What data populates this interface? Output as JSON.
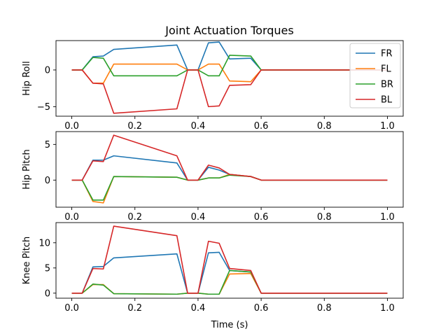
{
  "figure": {
    "title": "Joint Actuation Torques",
    "xlabel": "Time (s)"
  },
  "chart_data": [
    {
      "type": "line",
      "ylabel": "Hip Roll",
      "xlim": [
        -0.05,
        1.05
      ],
      "ylim": [
        -6.3,
        4.0
      ],
      "xticks": [
        "0.0",
        "0.2",
        "0.4",
        "0.6",
        "0.8",
        "1.0"
      ],
      "xtick_values": [
        0,
        0.2,
        0.4,
        0.6,
        0.8,
        1.0
      ],
      "yticks": [
        "−5",
        "0"
      ],
      "ytick_values": [
        -5,
        0
      ],
      "legend": {
        "placement": "top-right",
        "entries": [
          "FR",
          "FL",
          "BR",
          "BL"
        ]
      },
      "x": [
        0.0,
        0.033,
        0.067,
        0.1,
        0.133,
        0.333,
        0.367,
        0.4,
        0.433,
        0.467,
        0.5,
        0.567,
        0.6,
        1.0
      ],
      "series": [
        {
          "name": "FR",
          "color": "#1f77b4",
          "values": [
            0,
            0,
            1.8,
            1.9,
            2.8,
            3.4,
            0,
            0,
            3.7,
            3.8,
            1.5,
            1.6,
            0,
            0
          ]
        },
        {
          "name": "FL",
          "color": "#ff7f0e",
          "values": [
            0,
            0,
            -1.8,
            -1.8,
            0.8,
            0.8,
            0,
            0,
            0.8,
            0.8,
            -1.5,
            -1.6,
            0,
            0
          ]
        },
        {
          "name": "BR",
          "color": "#2ca02c",
          "values": [
            0,
            0,
            1.7,
            1.6,
            -0.8,
            -0.8,
            0,
            0,
            -0.8,
            -0.8,
            2.0,
            1.9,
            0,
            0
          ]
        },
        {
          "name": "BL",
          "color": "#d62728",
          "values": [
            0,
            0,
            -1.8,
            -1.9,
            -5.9,
            -5.3,
            0,
            0,
            -5.0,
            -4.9,
            -2.1,
            -2.0,
            0,
            0
          ]
        }
      ]
    },
    {
      "type": "line",
      "ylabel": "Hip Pitch",
      "xlim": [
        -0.05,
        1.05
      ],
      "ylim": [
        -3.8,
        6.8
      ],
      "xticks": [
        "0.0",
        "0.2",
        "0.4",
        "0.6",
        "0.8",
        "1.0"
      ],
      "xtick_values": [
        0,
        0.2,
        0.4,
        0.6,
        0.8,
        1.0
      ],
      "yticks": [
        "0",
        "5"
      ],
      "ytick_values": [
        0,
        5
      ],
      "x": [
        0.0,
        0.033,
        0.067,
        0.1,
        0.133,
        0.333,
        0.367,
        0.4,
        0.433,
        0.467,
        0.5,
        0.567,
        0.6,
        1.0
      ],
      "series": [
        {
          "name": "FR",
          "color": "#1f77b4",
          "values": [
            0,
            0,
            2.8,
            2.8,
            3.4,
            2.4,
            0,
            0,
            1.8,
            1.4,
            0.8,
            0.5,
            0,
            0
          ]
        },
        {
          "name": "FL",
          "color": "#ff7f0e",
          "values": [
            0,
            0,
            -3.0,
            -3.2,
            0.5,
            0.4,
            0,
            0,
            0.3,
            0.3,
            0.8,
            0.5,
            0,
            0
          ]
        },
        {
          "name": "BR",
          "color": "#2ca02c",
          "values": [
            0,
            0,
            -2.8,
            -2.8,
            0.5,
            0.4,
            0,
            0,
            0.3,
            0.3,
            0.7,
            0.5,
            0,
            0
          ]
        },
        {
          "name": "BL",
          "color": "#d62728",
          "values": [
            0,
            0,
            2.7,
            2.6,
            6.3,
            3.4,
            0,
            0,
            2.1,
            1.7,
            0.8,
            0.5,
            0,
            0
          ]
        }
      ]
    },
    {
      "type": "line",
      "ylabel": "Knee Pitch",
      "xlim": [
        -0.05,
        1.05
      ],
      "ylim": [
        -1.0,
        14.0
      ],
      "xticks": [
        "0.0",
        "0.2",
        "0.4",
        "0.6",
        "0.8",
        "1.0"
      ],
      "xtick_values": [
        0,
        0.2,
        0.4,
        0.6,
        0.8,
        1.0
      ],
      "yticks": [
        "0",
        "5",
        "10"
      ],
      "ytick_values": [
        0,
        5,
        10
      ],
      "x": [
        0.0,
        0.033,
        0.067,
        0.1,
        0.133,
        0.333,
        0.367,
        0.4,
        0.433,
        0.467,
        0.5,
        0.567,
        0.6,
        1.0
      ],
      "series": [
        {
          "name": "FR",
          "color": "#1f77b4",
          "values": [
            0,
            0,
            5.2,
            5.3,
            7.0,
            7.8,
            0,
            0,
            8.0,
            8.1,
            4.5,
            4.2,
            0,
            0
          ]
        },
        {
          "name": "FL",
          "color": "#ff7f0e",
          "values": [
            0,
            0,
            1.7,
            1.7,
            -0.1,
            -0.2,
            0,
            0,
            -0.2,
            -0.2,
            3.8,
            3.9,
            0,
            0
          ]
        },
        {
          "name": "BR",
          "color": "#2ca02c",
          "values": [
            0,
            0,
            1.8,
            1.6,
            -0.1,
            -0.2,
            0,
            0,
            -0.2,
            -0.2,
            4.5,
            4.2,
            0,
            0
          ]
        },
        {
          "name": "BL",
          "color": "#d62728",
          "values": [
            0,
            0,
            4.9,
            4.8,
            13.3,
            11.4,
            0,
            0,
            10.3,
            9.9,
            4.9,
            4.5,
            0,
            0
          ]
        }
      ]
    }
  ]
}
